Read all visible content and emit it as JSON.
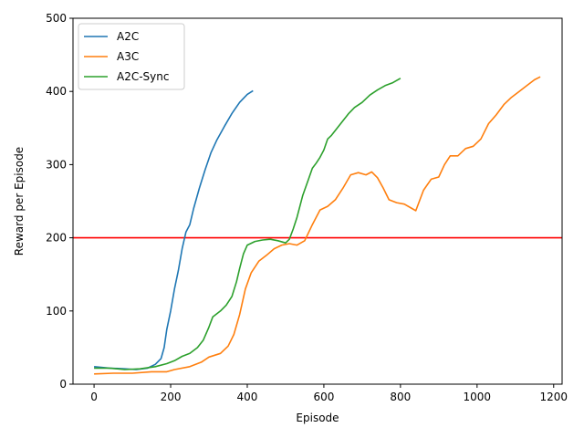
{
  "chart_data": {
    "type": "line",
    "xlabel": "Episode",
    "ylabel": "Reward per Episode",
    "xlim": [
      -55,
      1222
    ],
    "ylim": [
      0,
      500
    ],
    "x_ticks": [
      0,
      200,
      400,
      600,
      800,
      1000,
      1200
    ],
    "y_ticks": [
      0,
      100,
      200,
      300,
      400,
      500
    ],
    "x_tick_labels": [
      "0",
      "200",
      "400",
      "600",
      "800",
      "1000",
      "1200"
    ],
    "y_tick_labels": [
      "0",
      "100",
      "200",
      "300",
      "400",
      "500"
    ],
    "legend_position": "top-left",
    "grid": false,
    "reference_line": {
      "y": 200,
      "color": "#ff0000"
    },
    "series": [
      {
        "name": "A2C",
        "color": "#1f77b4",
        "points": [
          [
            0,
            24
          ],
          [
            40,
            22
          ],
          [
            80,
            21
          ],
          [
            110,
            20
          ],
          [
            140,
            22
          ],
          [
            160,
            27
          ],
          [
            175,
            35
          ],
          [
            183,
            50
          ],
          [
            190,
            75
          ],
          [
            200,
            100
          ],
          [
            210,
            130
          ],
          [
            220,
            155
          ],
          [
            230,
            185
          ],
          [
            240,
            208
          ],
          [
            250,
            218
          ],
          [
            260,
            240
          ],
          [
            275,
            268
          ],
          [
            290,
            293
          ],
          [
            305,
            316
          ],
          [
            320,
            333
          ],
          [
            340,
            352
          ],
          [
            360,
            370
          ],
          [
            380,
            385
          ],
          [
            400,
            396
          ],
          [
            415,
            401
          ]
        ]
      },
      {
        "name": "A3C",
        "color": "#ff7f0e",
        "points": [
          [
            0,
            14
          ],
          [
            50,
            15
          ],
          [
            100,
            15
          ],
          [
            150,
            17
          ],
          [
            190,
            17
          ],
          [
            210,
            20
          ],
          [
            250,
            24
          ],
          [
            280,
            30
          ],
          [
            300,
            37
          ],
          [
            330,
            42
          ],
          [
            350,
            52
          ],
          [
            365,
            68
          ],
          [
            380,
            95
          ],
          [
            395,
            130
          ],
          [
            410,
            152
          ],
          [
            430,
            168
          ],
          [
            450,
            176
          ],
          [
            470,
            185
          ],
          [
            490,
            190
          ],
          [
            510,
            192
          ],
          [
            530,
            190
          ],
          [
            550,
            196
          ],
          [
            570,
            218
          ],
          [
            590,
            238
          ],
          [
            610,
            243
          ],
          [
            630,
            252
          ],
          [
            650,
            268
          ],
          [
            670,
            286
          ],
          [
            690,
            289
          ],
          [
            710,
            286
          ],
          [
            725,
            290
          ],
          [
            740,
            282
          ],
          [
            755,
            268
          ],
          [
            770,
            252
          ],
          [
            790,
            248
          ],
          [
            810,
            246
          ],
          [
            830,
            240
          ],
          [
            840,
            237
          ],
          [
            860,
            265
          ],
          [
            880,
            280
          ],
          [
            900,
            283
          ],
          [
            915,
            300
          ],
          [
            930,
            312
          ],
          [
            950,
            312
          ],
          [
            970,
            322
          ],
          [
            990,
            325
          ],
          [
            1010,
            335
          ],
          [
            1030,
            356
          ],
          [
            1050,
            368
          ],
          [
            1070,
            382
          ],
          [
            1090,
            392
          ],
          [
            1110,
            400
          ],
          [
            1130,
            408
          ],
          [
            1150,
            416
          ],
          [
            1165,
            420
          ]
        ]
      },
      {
        "name": "A2C-Sync",
        "color": "#2ca02c",
        "points": [
          [
            0,
            22
          ],
          [
            40,
            22
          ],
          [
            80,
            20
          ],
          [
            120,
            21
          ],
          [
            160,
            24
          ],
          [
            190,
            28
          ],
          [
            210,
            32
          ],
          [
            230,
            38
          ],
          [
            250,
            42
          ],
          [
            270,
            50
          ],
          [
            285,
            60
          ],
          [
            300,
            78
          ],
          [
            310,
            92
          ],
          [
            320,
            96
          ],
          [
            330,
            100
          ],
          [
            345,
            108
          ],
          [
            360,
            120
          ],
          [
            372,
            140
          ],
          [
            380,
            158
          ],
          [
            390,
            178
          ],
          [
            400,
            190
          ],
          [
            420,
            195
          ],
          [
            440,
            197
          ],
          [
            460,
            198
          ],
          [
            480,
            196
          ],
          [
            500,
            193
          ],
          [
            510,
            198
          ],
          [
            520,
            212
          ],
          [
            530,
            228
          ],
          [
            545,
            258
          ],
          [
            560,
            280
          ],
          [
            570,
            295
          ],
          [
            580,
            302
          ],
          [
            590,
            310
          ],
          [
            600,
            320
          ],
          [
            610,
            335
          ],
          [
            620,
            340
          ],
          [
            635,
            350
          ],
          [
            650,
            360
          ],
          [
            665,
            370
          ],
          [
            680,
            378
          ],
          [
            700,
            385
          ],
          [
            720,
            395
          ],
          [
            740,
            402
          ],
          [
            760,
            408
          ],
          [
            780,
            412
          ],
          [
            800,
            418
          ]
        ]
      }
    ]
  }
}
